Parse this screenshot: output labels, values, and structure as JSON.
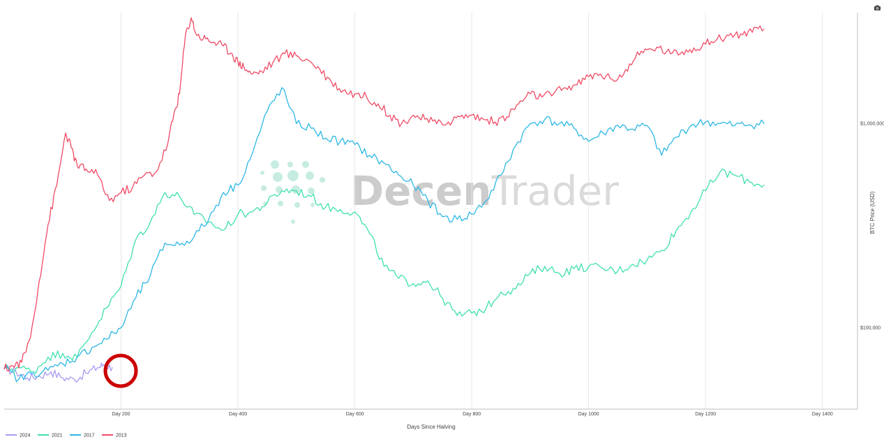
{
  "watermark": {
    "brand_part1": "Decen",
    "brand_part2": "Trader",
    "logo_icon": "dot-grid-logo-icon"
  },
  "toolbar": {
    "camera_icon": "camera-icon"
  },
  "highlight_color": "#cc0000",
  "chart_data": {
    "type": "line",
    "title": "",
    "xlabel": "Days Since Halving",
    "ylabel": "BTC Price (USD)",
    "y_scale": "log",
    "xlim": [
      0,
      1460
    ],
    "ylim": [
      40000,
      3500000
    ],
    "grid": "vertical-only",
    "legend_position": "bottom-left",
    "x_ticks": [
      {
        "value": 200,
        "label": "Day 200"
      },
      {
        "value": 400,
        "label": "Day 400"
      },
      {
        "value": 600,
        "label": "Day 600"
      },
      {
        "value": 800,
        "label": "Day 800"
      },
      {
        "value": 1000,
        "label": "Day 1000"
      },
      {
        "value": 1200,
        "label": "Day 1200"
      },
      {
        "value": 1400,
        "label": "Day 1400"
      }
    ],
    "y_ticks": [
      {
        "value": 100000,
        "label": "$100,000"
      },
      {
        "value": 1000000,
        "label": "$1,000,000"
      }
    ],
    "series": [
      {
        "name": "2024",
        "color": "#a99af2",
        "points": [
          [
            0,
            63000
          ],
          [
            20,
            61000
          ],
          [
            40,
            57000
          ],
          [
            60,
            58000
          ],
          [
            80,
            61000
          ],
          [
            100,
            57000
          ],
          [
            120,
            56000
          ],
          [
            140,
            60000
          ],
          [
            160,
            64000
          ],
          [
            170,
            66000
          ],
          [
            185,
            64000
          ]
        ]
      },
      {
        "name": "2021",
        "color": "#3ee0b0",
        "points": [
          [
            0,
            63000
          ],
          [
            25,
            64000
          ],
          [
            50,
            61000
          ],
          [
            75,
            72000
          ],
          [
            100,
            75000
          ],
          [
            125,
            72000
          ],
          [
            150,
            95000
          ],
          [
            175,
            125000
          ],
          [
            200,
            160000
          ],
          [
            225,
            270000
          ],
          [
            250,
            330000
          ],
          [
            275,
            460000
          ],
          [
            300,
            440000
          ],
          [
            325,
            360000
          ],
          [
            350,
            330000
          ],
          [
            375,
            300000
          ],
          [
            400,
            360000
          ],
          [
            425,
            370000
          ],
          [
            450,
            410000
          ],
          [
            475,
            470000
          ],
          [
            500,
            470000
          ],
          [
            525,
            440000
          ],
          [
            550,
            390000
          ],
          [
            575,
            380000
          ],
          [
            600,
            370000
          ],
          [
            625,
            290000
          ],
          [
            650,
            200000
          ],
          [
            675,
            175000
          ],
          [
            700,
            165000
          ],
          [
            725,
            170000
          ],
          [
            750,
            140000
          ],
          [
            775,
            115000
          ],
          [
            800,
            118000
          ],
          [
            825,
            125000
          ],
          [
            850,
            150000
          ],
          [
            875,
            155000
          ],
          [
            900,
            185000
          ],
          [
            925,
            200000
          ],
          [
            950,
            185000
          ],
          [
            975,
            195000
          ],
          [
            1000,
            200000
          ],
          [
            1025,
            195000
          ],
          [
            1050,
            190000
          ],
          [
            1075,
            205000
          ],
          [
            1100,
            215000
          ],
          [
            1125,
            240000
          ],
          [
            1150,
            300000
          ],
          [
            1175,
            370000
          ],
          [
            1200,
            470000
          ],
          [
            1225,
            580000
          ],
          [
            1250,
            560000
          ],
          [
            1275,
            520000
          ],
          [
            1300,
            500000
          ]
        ]
      },
      {
        "name": "2017",
        "color": "#2bb7e4",
        "points": [
          [
            0,
            63000
          ],
          [
            25,
            56000
          ],
          [
            50,
            60000
          ],
          [
            75,
            62000
          ],
          [
            100,
            67000
          ],
          [
            125,
            72000
          ],
          [
            150,
            80000
          ],
          [
            175,
            88000
          ],
          [
            200,
            100000
          ],
          [
            225,
            140000
          ],
          [
            250,
            180000
          ],
          [
            275,
            260000
          ],
          [
            300,
            255000
          ],
          [
            325,
            280000
          ],
          [
            350,
            340000
          ],
          [
            375,
            460000
          ],
          [
            400,
            500000
          ],
          [
            425,
            720000
          ],
          [
            450,
            1150000
          ],
          [
            475,
            1500000
          ],
          [
            500,
            1000000
          ],
          [
            525,
            950000
          ],
          [
            550,
            850000
          ],
          [
            575,
            820000
          ],
          [
            600,
            790000
          ],
          [
            625,
            700000
          ],
          [
            650,
            640000
          ],
          [
            675,
            560000
          ],
          [
            700,
            500000
          ],
          [
            725,
            420000
          ],
          [
            750,
            350000
          ],
          [
            775,
            340000
          ],
          [
            800,
            360000
          ],
          [
            825,
            420000
          ],
          [
            850,
            560000
          ],
          [
            875,
            780000
          ],
          [
            900,
            1000000
          ],
          [
            925,
            1050000
          ],
          [
            950,
            1000000
          ],
          [
            975,
            950000
          ],
          [
            1000,
            820000
          ],
          [
            1025,
            900000
          ],
          [
            1050,
            980000
          ],
          [
            1075,
            940000
          ],
          [
            1100,
            980000
          ],
          [
            1125,
            700000
          ],
          [
            1150,
            860000
          ],
          [
            1175,
            980000
          ],
          [
            1200,
            1020000
          ],
          [
            1225,
            1000000
          ],
          [
            1250,
            980000
          ],
          [
            1275,
            990000
          ],
          [
            1300,
            1000000
          ]
        ]
      },
      {
        "name": "2013",
        "color": "#f04a64",
        "points": [
          [
            0,
            63000
          ],
          [
            15,
            65000
          ],
          [
            30,
            68000
          ],
          [
            45,
            90000
          ],
          [
            60,
            170000
          ],
          [
            75,
            320000
          ],
          [
            90,
            500000
          ],
          [
            105,
            900000
          ],
          [
            115,
            760000
          ],
          [
            125,
            620000
          ],
          [
            140,
            600000
          ],
          [
            160,
            560000
          ],
          [
            180,
            420000
          ],
          [
            200,
            460000
          ],
          [
            220,
            490000
          ],
          [
            240,
            560000
          ],
          [
            260,
            580000
          ],
          [
            280,
            800000
          ],
          [
            290,
            1100000
          ],
          [
            300,
            1400000
          ],
          [
            310,
            2700000
          ],
          [
            320,
            3300000
          ],
          [
            330,
            2700000
          ],
          [
            345,
            2600000
          ],
          [
            360,
            2500000
          ],
          [
            375,
            2400000
          ],
          [
            390,
            2200000
          ],
          [
            400,
            2000000
          ],
          [
            410,
            1900000
          ],
          [
            425,
            1750000
          ],
          [
            440,
            1800000
          ],
          [
            460,
            2000000
          ],
          [
            480,
            2200000
          ],
          [
            500,
            2150000
          ],
          [
            520,
            2050000
          ],
          [
            540,
            1850000
          ],
          [
            560,
            1600000
          ],
          [
            580,
            1450000
          ],
          [
            600,
            1400000
          ],
          [
            620,
            1350000
          ],
          [
            640,
            1250000
          ],
          [
            660,
            1100000
          ],
          [
            680,
            1000000
          ],
          [
            700,
            1100000
          ],
          [
            720,
            1050000
          ],
          [
            740,
            1000000
          ],
          [
            760,
            1020000
          ],
          [
            780,
            1080000
          ],
          [
            800,
            1100000
          ],
          [
            820,
            1050000
          ],
          [
            840,
            1020000
          ],
          [
            860,
            1080000
          ],
          [
            880,
            1250000
          ],
          [
            900,
            1400000
          ],
          [
            920,
            1350000
          ],
          [
            940,
            1400000
          ],
          [
            960,
            1500000
          ],
          [
            980,
            1550000
          ],
          [
            1000,
            1700000
          ],
          [
            1020,
            1750000
          ],
          [
            1040,
            1650000
          ],
          [
            1060,
            1750000
          ],
          [
            1080,
            2100000
          ],
          [
            1100,
            2300000
          ],
          [
            1120,
            2350000
          ],
          [
            1140,
            2200000
          ],
          [
            1160,
            2250000
          ],
          [
            1180,
            2350000
          ],
          [
            1200,
            2450000
          ],
          [
            1220,
            2600000
          ],
          [
            1240,
            2700000
          ],
          [
            1260,
            2750000
          ],
          [
            1280,
            2800000
          ],
          [
            1300,
            2900000
          ]
        ]
      }
    ]
  }
}
